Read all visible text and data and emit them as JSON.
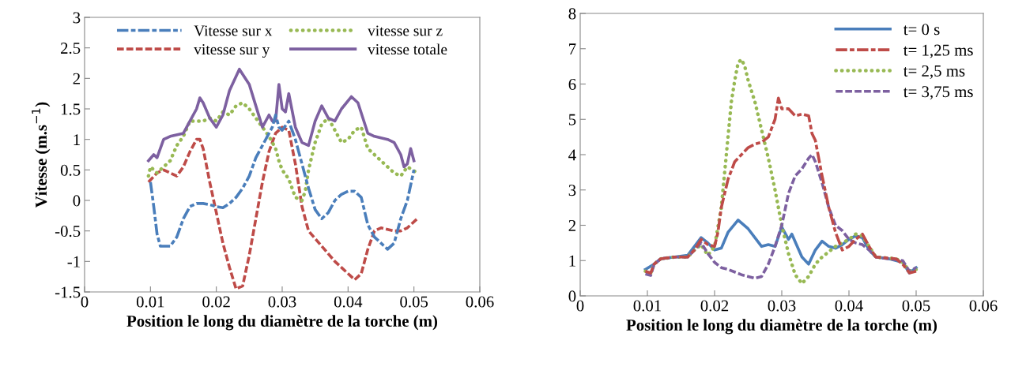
{
  "chart_data": [
    {
      "type": "line",
      "xlabel": "Position le long du diamètre de la torche (m)",
      "ylabel": "Vitesse (m.s$^{−1}$)",
      "xlim": [
        0,
        0.06
      ],
      "xticks": [
        0,
        0.01,
        0.02,
        0.03,
        0.04,
        0.05,
        0.06
      ],
      "ylim": [
        -1.5,
        3
      ],
      "yticks": [
        -1.5,
        -1,
        -0.5,
        0,
        0.5,
        1,
        1.5,
        2,
        2.5,
        3
      ],
      "grid": false,
      "legend": "top",
      "marker": "none",
      "series": [
        {
          "name": "Vitesse sur x",
          "color": "#4a7ebb",
          "line_style": "longdash",
          "x": [
            0.01,
            0.0105,
            0.011,
            0.0115,
            0.013,
            0.014,
            0.015,
            0.016,
            0.017,
            0.018,
            0.019,
            0.02,
            0.021,
            0.022,
            0.023,
            0.024,
            0.025,
            0.026,
            0.027,
            0.028,
            0.0285,
            0.029,
            0.0295,
            0.03,
            0.031,
            0.032,
            0.033,
            0.034,
            0.035,
            0.036,
            0.037,
            0.038,
            0.039,
            0.04,
            0.041,
            0.042,
            0.043,
            0.044,
            0.045,
            0.046,
            0.047,
            0.048,
            0.049,
            0.05
          ],
          "values": [
            0.3,
            -0.1,
            -0.55,
            -0.75,
            -0.75,
            -0.6,
            -0.3,
            -0.1,
            -0.05,
            -0.05,
            -0.07,
            -0.1,
            -0.12,
            -0.05,
            0.05,
            0.2,
            0.4,
            0.7,
            0.9,
            1.1,
            1.2,
            1.4,
            1.2,
            1.15,
            1.3,
            1.0,
            0.6,
            0.2,
            -0.15,
            -0.3,
            -0.2,
            0.0,
            0.1,
            0.15,
            0.15,
            0.05,
            -0.4,
            -0.6,
            -0.7,
            -0.8,
            -0.7,
            -0.3,
            0.0,
            0.5
          ]
        },
        {
          "name": "vitesse sur y",
          "color": "#be4b48",
          "line_style": "dashed",
          "x": [
            0.0097,
            0.011,
            0.012,
            0.013,
            0.014,
            0.015,
            0.016,
            0.017,
            0.0175,
            0.018,
            0.019,
            0.02,
            0.021,
            0.022,
            0.023,
            0.024,
            0.025,
            0.026,
            0.027,
            0.028,
            0.029,
            0.03,
            0.031,
            0.032,
            0.033,
            0.034,
            0.036,
            0.038,
            0.04,
            0.041,
            0.042,
            0.043,
            0.044,
            0.045,
            0.047,
            0.048,
            0.049,
            0.0505
          ],
          "values": [
            0.3,
            0.45,
            0.5,
            0.45,
            0.4,
            0.55,
            0.8,
            1.0,
            1.0,
            0.85,
            0.3,
            -0.2,
            -0.7,
            -1.1,
            -1.45,
            -1.4,
            -0.9,
            -0.3,
            0.3,
            0.8,
            1.1,
            1.2,
            1.15,
            0.6,
            -0.1,
            -0.5,
            -0.75,
            -1.0,
            -1.2,
            -1.3,
            -1.2,
            -0.8,
            -0.5,
            -0.45,
            -0.5,
            -0.5,
            -0.45,
            -0.3
          ]
        },
        {
          "name": "vitesse sur z",
          "color": "#98b954",
          "line_style": "dotted",
          "x": [
            0.0097,
            0.01,
            0.011,
            0.012,
            0.013,
            0.014,
            0.015,
            0.016,
            0.017,
            0.018,
            0.019,
            0.02,
            0.021,
            0.022,
            0.023,
            0.024,
            0.025,
            0.026,
            0.027,
            0.028,
            0.029,
            0.0295,
            0.03,
            0.031,
            0.032,
            0.033,
            0.0335,
            0.034,
            0.035,
            0.036,
            0.037,
            0.038,
            0.039,
            0.04,
            0.041,
            0.042,
            0.043,
            0.045,
            0.047,
            0.048,
            0.049,
            0.0505
          ],
          "values": [
            0.4,
            0.55,
            0.45,
            0.55,
            0.65,
            0.9,
            1.05,
            1.3,
            1.3,
            1.3,
            1.35,
            1.3,
            1.45,
            1.4,
            1.55,
            1.6,
            1.5,
            1.35,
            1.2,
            1.05,
            0.85,
            0.65,
            0.5,
            0.35,
            0.05,
            0.0,
            0.15,
            0.5,
            0.95,
            1.25,
            1.35,
            1.15,
            0.95,
            1.0,
            1.15,
            1.2,
            0.85,
            0.65,
            0.45,
            0.4,
            0.55,
            0.45
          ]
        },
        {
          "name": "vitesse totale",
          "color": "#7d60a0",
          "line_style": "solid",
          "x": [
            0.0097,
            0.0105,
            0.011,
            0.012,
            0.013,
            0.015,
            0.016,
            0.017,
            0.0175,
            0.018,
            0.019,
            0.02,
            0.021,
            0.022,
            0.0235,
            0.025,
            0.026,
            0.027,
            0.028,
            0.0285,
            0.029,
            0.0295,
            0.03,
            0.0305,
            0.031,
            0.032,
            0.033,
            0.034,
            0.035,
            0.036,
            0.037,
            0.038,
            0.039,
            0.0405,
            0.0415,
            0.043,
            0.044,
            0.046,
            0.047,
            0.048,
            0.0485,
            0.049,
            0.0495,
            0.05
          ],
          "values": [
            0.65,
            0.75,
            0.7,
            1.0,
            1.05,
            1.1,
            1.3,
            1.5,
            1.68,
            1.6,
            1.35,
            1.2,
            1.4,
            1.8,
            2.15,
            1.9,
            1.55,
            1.2,
            1.4,
            1.3,
            1.3,
            1.9,
            1.5,
            1.45,
            1.75,
            1.2,
            0.95,
            0.9,
            1.3,
            1.55,
            1.35,
            1.3,
            1.5,
            1.7,
            1.6,
            1.1,
            1.05,
            1.0,
            0.95,
            0.75,
            0.55,
            0.6,
            0.85,
            0.65
          ]
        }
      ]
    },
    {
      "type": "line",
      "xlabel": "Position le long du diamètre de la torche (m)",
      "xlim": [
        0,
        0.06
      ],
      "xticks": [
        0,
        0.01,
        0.02,
        0.03,
        0.04,
        0.05,
        0.06
      ],
      "ylim": [
        0,
        8
      ],
      "yticks": [
        0,
        1,
        2,
        3,
        4,
        5,
        6,
        7,
        8
      ],
      "grid": false,
      "legend": "top right",
      "marker": "none",
      "series": [
        {
          "name": "t= 0 s",
          "color": "#4a7ebb",
          "line_style": "solid",
          "x": [
            0.0097,
            0.011,
            0.012,
            0.014,
            0.016,
            0.017,
            0.018,
            0.019,
            0.02,
            0.021,
            0.022,
            0.0235,
            0.025,
            0.027,
            0.028,
            0.029,
            0.03,
            0.031,
            0.0315,
            0.033,
            0.034,
            0.035,
            0.036,
            0.037,
            0.038,
            0.039,
            0.04,
            0.041,
            0.042,
            0.043,
            0.044,
            0.046,
            0.048,
            0.049,
            0.05
          ],
          "values": [
            0.75,
            0.9,
            1.05,
            1.1,
            1.15,
            1.4,
            1.65,
            1.5,
            1.3,
            1.35,
            1.8,
            2.15,
            1.9,
            1.4,
            1.45,
            1.4,
            1.95,
            1.6,
            1.75,
            1.1,
            0.9,
            1.3,
            1.55,
            1.4,
            1.35,
            1.45,
            1.6,
            1.7,
            1.65,
            1.3,
            1.1,
            1.05,
            0.95,
            0.65,
            0.8
          ]
        },
        {
          "name": "t= 1,25 ms",
          "color": "#be4b48",
          "line_style": "longdash",
          "x": [
            0.0097,
            0.0105,
            0.011,
            0.012,
            0.014,
            0.016,
            0.017,
            0.018,
            0.019,
            0.02,
            0.0205,
            0.021,
            0.022,
            0.023,
            0.024,
            0.025,
            0.026,
            0.027,
            0.028,
            0.029,
            0.0295,
            0.03,
            0.031,
            0.032,
            0.033,
            0.034,
            0.0345,
            0.035,
            0.036,
            0.037,
            0.038,
            0.039,
            0.04,
            0.041,
            0.042,
            0.043,
            0.044,
            0.047,
            0.048,
            0.049,
            0.05
          ],
          "values": [
            0.7,
            0.65,
            0.9,
            1.05,
            1.1,
            1.1,
            1.3,
            1.6,
            1.45,
            1.4,
            1.8,
            2.5,
            3.3,
            3.8,
            4.0,
            4.2,
            4.3,
            4.35,
            4.5,
            5.0,
            5.6,
            5.3,
            5.3,
            5.1,
            5.15,
            5.1,
            4.6,
            4.4,
            3.4,
            2.5,
            1.8,
            1.3,
            1.4,
            1.6,
            1.75,
            1.4,
            1.1,
            1.05,
            0.9,
            0.65,
            0.7
          ]
        },
        {
          "name": "t= 2,5 ms",
          "color": "#98b954",
          "line_style": "dotted",
          "x": [
            0.0097,
            0.0105,
            0.011,
            0.012,
            0.014,
            0.016,
            0.017,
            0.018,
            0.019,
            0.02,
            0.021,
            0.0215,
            0.022,
            0.0225,
            0.023,
            0.0235,
            0.024,
            0.0245,
            0.025,
            0.026,
            0.027,
            0.028,
            0.029,
            0.03,
            0.031,
            0.032,
            0.033,
            0.034,
            0.035,
            0.036,
            0.037,
            0.038,
            0.04,
            0.041,
            0.042,
            0.043,
            0.044,
            0.047,
            0.048,
            0.049,
            0.05
          ],
          "values": [
            0.7,
            0.65,
            0.9,
            1.05,
            1.1,
            1.1,
            1.3,
            1.45,
            1.15,
            1.4,
            2.5,
            3.5,
            4.5,
            5.5,
            6.1,
            6.6,
            6.7,
            6.5,
            6.1,
            5.5,
            4.7,
            3.9,
            3.0,
            2.0,
            1.2,
            0.6,
            0.35,
            0.55,
            0.9,
            1.1,
            1.25,
            1.4,
            1.6,
            1.75,
            1.7,
            1.4,
            1.1,
            1.05,
            0.95,
            0.7,
            0.75
          ]
        },
        {
          "name": "t= 3,75 ms",
          "color": "#7d60a0",
          "line_style": "dashed",
          "x": [
            0.0097,
            0.0105,
            0.011,
            0.012,
            0.014,
            0.016,
            0.017,
            0.018,
            0.019,
            0.02,
            0.021,
            0.022,
            0.024,
            0.025,
            0.026,
            0.027,
            0.028,
            0.029,
            0.03,
            0.031,
            0.032,
            0.033,
            0.034,
            0.0345,
            0.035,
            0.036,
            0.037,
            0.038,
            0.039,
            0.04,
            0.041,
            0.042,
            0.043,
            0.044,
            0.046,
            0.048,
            0.049,
            0.05
          ],
          "values": [
            0.62,
            0.58,
            0.9,
            1.05,
            1.1,
            1.1,
            1.3,
            1.5,
            1.2,
            0.95,
            0.8,
            0.75,
            0.6,
            0.55,
            0.5,
            0.55,
            0.9,
            1.4,
            2.0,
            2.9,
            3.4,
            3.6,
            3.9,
            4.0,
            3.8,
            3.2,
            2.5,
            2.0,
            1.85,
            1.6,
            1.5,
            1.45,
            1.3,
            1.1,
            1.05,
            1.0,
            0.7,
            0.8
          ]
        }
      ]
    }
  ]
}
